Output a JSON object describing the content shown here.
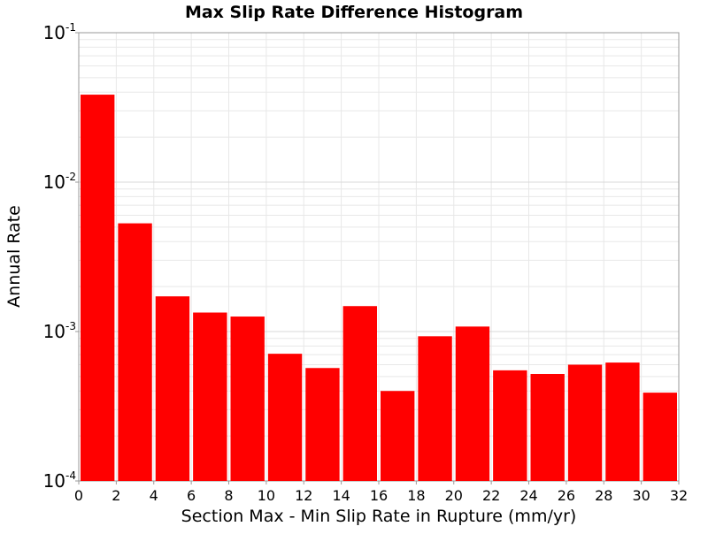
{
  "chart_data": {
    "type": "bar",
    "title": "Max Slip Rate Difference Histogram",
    "xlabel": "Section Max - Min Slip Rate in Rupture (mm/yr)",
    "ylabel": "Annual Rate",
    "yscale": "log",
    "xlim": [
      0,
      32
    ],
    "ylim": [
      0.0001,
      0.1
    ],
    "bin_width": 2,
    "x_ticks": [
      "0",
      "2",
      "4",
      "6",
      "8",
      "10",
      "12",
      "14",
      "16",
      "18",
      "20",
      "22",
      "24",
      "26",
      "28",
      "30",
      "32"
    ],
    "y_ticks": [
      {
        "base": "10",
        "exp": "-4",
        "value": 0.0001
      },
      {
        "base": "10",
        "exp": "-3",
        "value": 0.001
      },
      {
        "base": "10",
        "exp": "-2",
        "value": 0.01
      },
      {
        "base": "10",
        "exp": "-1",
        "value": 0.1
      }
    ],
    "x": [
      1,
      3,
      5,
      7,
      9,
      11,
      13,
      15,
      17,
      19,
      21,
      23,
      25,
      27,
      29,
      31
    ],
    "values": [
      0.0385,
      0.0053,
      0.00172,
      0.00134,
      0.00126,
      0.00071,
      0.00057,
      0.00148,
      0.0004,
      0.00093,
      0.00108,
      0.00055,
      0.00052,
      0.0006,
      0.00062,
      0.00039
    ],
    "bar_color": "#ff0000",
    "grid": true,
    "grid_color": "#e8e8e8",
    "legend": "none"
  }
}
